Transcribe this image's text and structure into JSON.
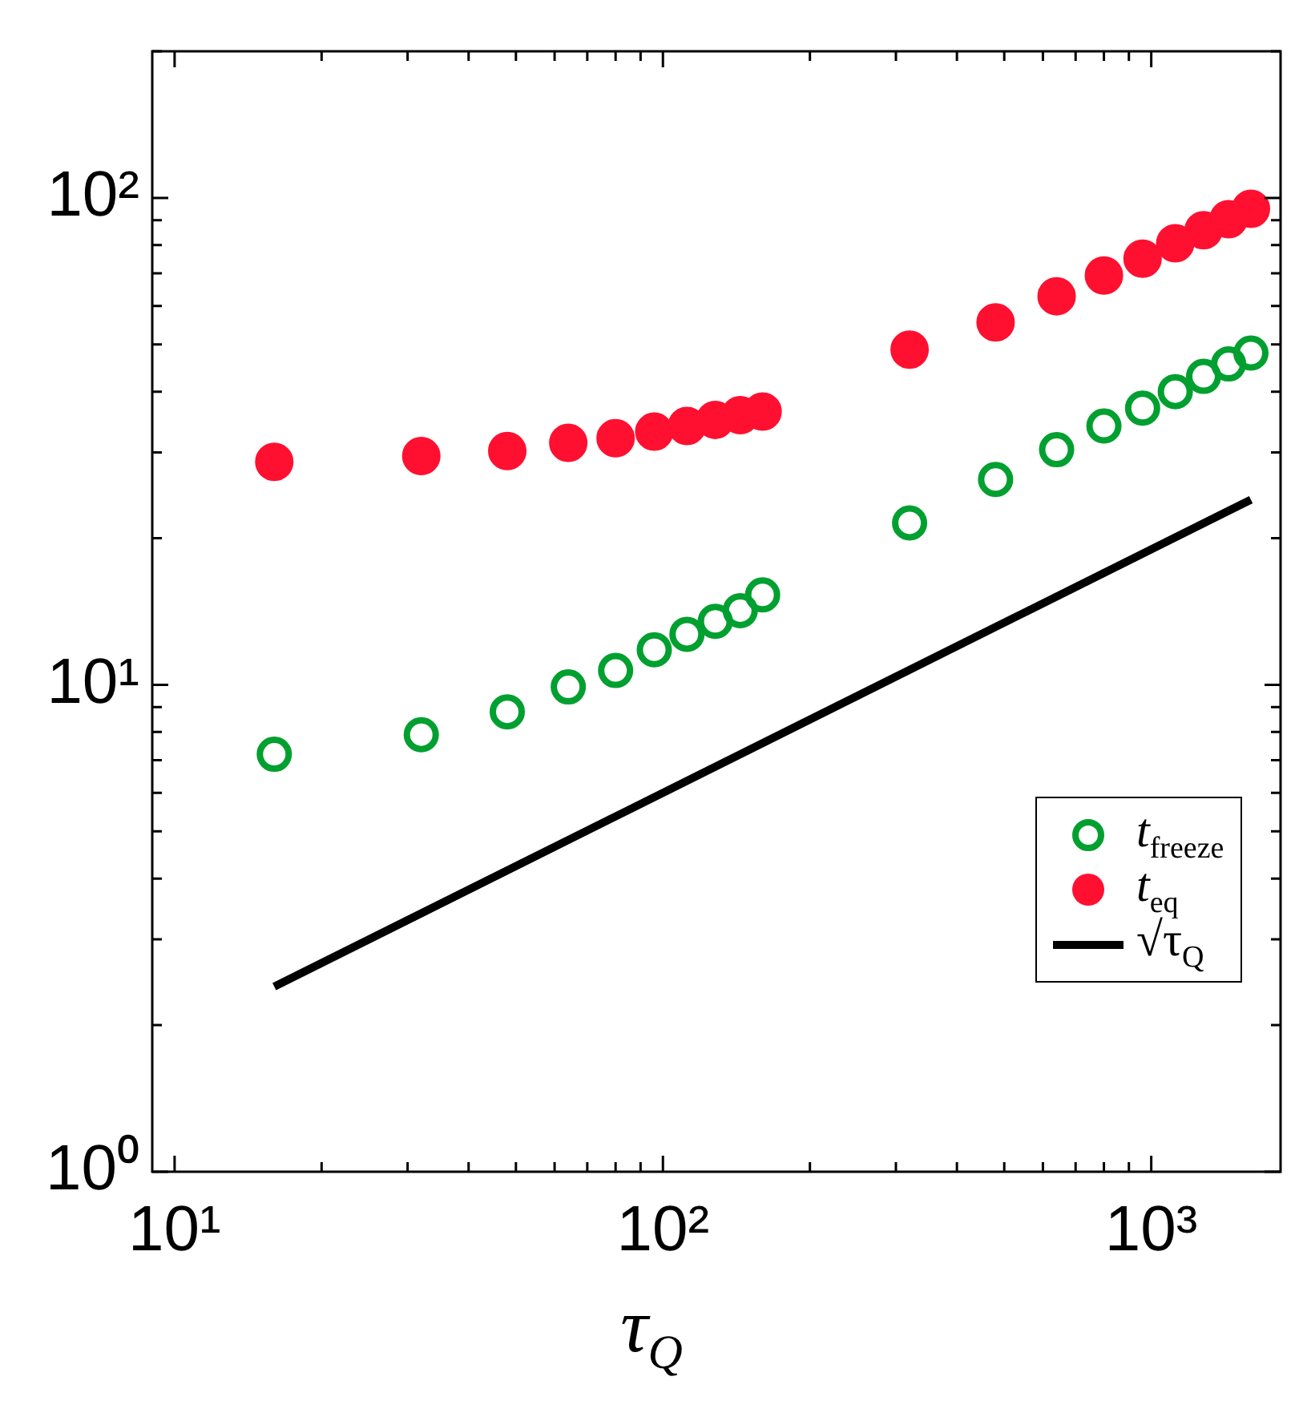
{
  "chart_data": {
    "type": "scatter",
    "xlabel": "τ$_{Q}$",
    "log": "xy",
    "legend": "bottom right",
    "grid": false,
    "xlim": [
      9,
      1840
    ],
    "ylim": [
      1,
      200
    ],
    "xticks": [
      {
        "value": 10,
        "label": "10¹"
      },
      {
        "value": 20,
        "label": null
      },
      {
        "value": 30,
        "label": null
      },
      {
        "value": 40,
        "label": null
      },
      {
        "value": 50,
        "label": null
      },
      {
        "value": 60,
        "label": null
      },
      {
        "value": 70,
        "label": null
      },
      {
        "value": 80,
        "label": null
      },
      {
        "value": 90,
        "label": null
      },
      {
        "value": 100,
        "label": "10²"
      },
      {
        "value": 200,
        "label": null
      },
      {
        "value": 300,
        "label": null
      },
      {
        "value": 400,
        "label": null
      },
      {
        "value": 500,
        "label": null
      },
      {
        "value": 600,
        "label": null
      },
      {
        "value": 700,
        "label": null
      },
      {
        "value": 800,
        "label": null
      },
      {
        "value": 900,
        "label": null
      },
      {
        "value": 1000,
        "label": "10³"
      }
    ],
    "yticks": [
      {
        "value": 1,
        "label": "10⁰"
      },
      {
        "value": 2,
        "label": null
      },
      {
        "value": 3,
        "label": null
      },
      {
        "value": 4,
        "label": null
      },
      {
        "value": 5,
        "label": null
      },
      {
        "value": 6,
        "label": null
      },
      {
        "value": 7,
        "label": null
      },
      {
        "value": 8,
        "label": null
      },
      {
        "value": 9,
        "label": null
      },
      {
        "value": 10,
        "label": "10¹"
      },
      {
        "value": 20,
        "label": null
      },
      {
        "value": 30,
        "label": null
      },
      {
        "value": 40,
        "label": null
      },
      {
        "value": 50,
        "label": null
      },
      {
        "value": 60,
        "label": null
      },
      {
        "value": 70,
        "label": null
      },
      {
        "value": 80,
        "label": null
      },
      {
        "value": 90,
        "label": null
      },
      {
        "value": 100,
        "label": "10²"
      },
      {
        "value": 200,
        "label": null
      }
    ],
    "series": [
      {
        "name": "t$_{freeze}$",
        "marker": "circle",
        "color": "#00a030",
        "x": [
          16,
          32,
          48,
          64,
          80,
          96,
          112,
          128,
          144,
          160,
          320,
          480,
          640,
          800,
          960,
          1120,
          1280,
          1440,
          1600
        ],
        "values": [
          7.2,
          7.9,
          8.8,
          9.9,
          10.7,
          11.8,
          12.7,
          13.5,
          14.2,
          15.3,
          21.5,
          26.4,
          30.4,
          34,
          37,
          40,
          43,
          45.6,
          48
        ]
      },
      {
        "name": "t$_{eq}$",
        "marker": "circle",
        "color": "#ff1030",
        "x": [
          16,
          32,
          48,
          64,
          80,
          96,
          112,
          128,
          144,
          160,
          320,
          480,
          640,
          800,
          960,
          1120,
          1280,
          1440,
          1600
        ],
        "values": [
          28.7,
          29.5,
          30.2,
          31.4,
          32.1,
          33.1,
          34,
          35,
          35.8,
          36.4,
          48.8,
          55.5,
          62.8,
          69.3,
          75,
          80.7,
          85.8,
          90.4,
          95
        ]
      },
      {
        "name": "√τ$_{Q}$",
        "type": "line",
        "marker": "none",
        "color": "#000000",
        "x": [
          16,
          1600
        ],
        "values": [
          2.4,
          24
        ]
      }
    ]
  }
}
